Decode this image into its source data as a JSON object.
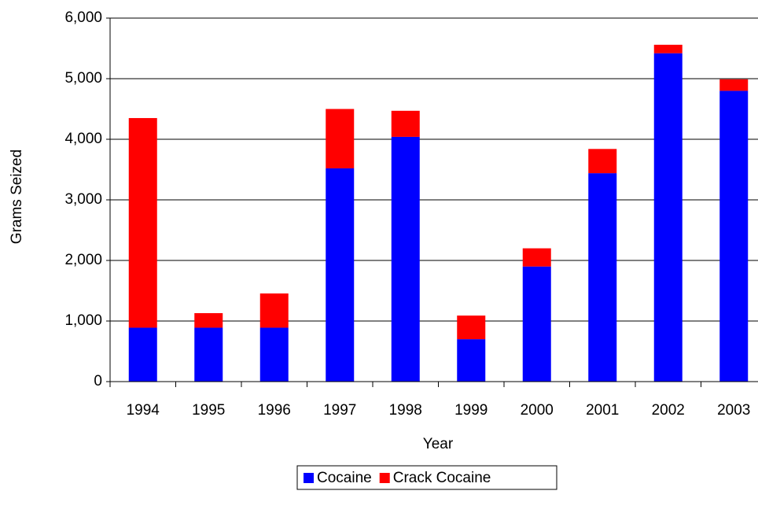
{
  "chart_data": {
    "type": "stacked_bar",
    "x_label": "Year",
    "y_label": "Grams Seized",
    "categories": [
      "1994",
      "1995",
      "1996",
      "1997",
      "1998",
      "1999",
      "2000",
      "2001",
      "2002",
      "2003"
    ],
    "series": [
      {
        "name": "Cocaine",
        "color": "#0000ff",
        "values": [
          890,
          890,
          890,
          3520,
          4040,
          700,
          1900,
          3440,
          5420,
          4800
        ]
      },
      {
        "name": "Crack Cocaine",
        "color": "#ff0000",
        "values": [
          3460,
          240,
          565,
          980,
          430,
          390,
          300,
          400,
          140,
          190
        ]
      }
    ],
    "ylim": [
      0,
      6000
    ],
    "yticks": [
      0,
      {
        "value": 1000,
        "label": "1,000"
      },
      {
        "value": 2000,
        "label": "2,000"
      },
      {
        "value": 3000,
        "label": "3,000"
      },
      {
        "value": 4000,
        "label": "4,000"
      },
      {
        "value": 5000,
        "label": "5,000"
      },
      {
        "value": 6000,
        "label": "6,000"
      }
    ],
    "grid": true,
    "legend": "bottom"
  }
}
